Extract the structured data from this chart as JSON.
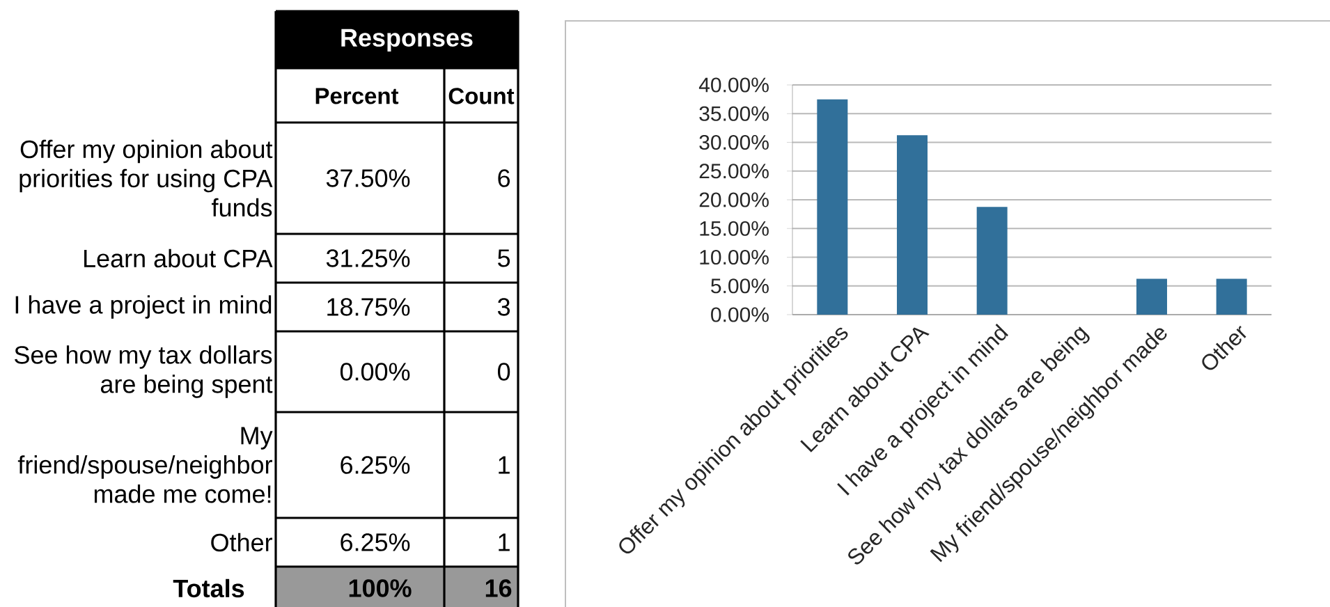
{
  "chart_data": [
    {
      "type": "other",
      "title": "Responses",
      "categories": [
        "Offer my opinion about priorities for using CPA funds",
        "Learn about CPA",
        "I have a project in mind",
        "See how my tax dollars are being spent",
        "My friend/spouse/neighbor made me come!",
        "Other"
      ],
      "series": [
        {
          "name": "Percent",
          "values": [
            37.5,
            31.25,
            18.75,
            0,
            6.25,
            6.25
          ],
          "value_labels": [
            "37.50%",
            "31.25%",
            "18.75%",
            "0.00%",
            "6.25%",
            "6.25%"
          ]
        },
        {
          "name": "Count",
          "values": [
            6,
            5,
            3,
            0,
            1,
            1
          ]
        }
      ],
      "data_labels": true,
      "annotations": [
        "Totals",
        "100%",
        "16"
      ]
    },
    {
      "type": "bar",
      "categories": [
        "Offer my opinion about priorities",
        "Learn about CPA",
        "I have a project in mind",
        "See how my tax dollars are being",
        "My friend/spouse/neighbor made",
        "Other"
      ],
      "values": [
        37.5,
        31.25,
        18.75,
        0,
        6.25,
        6.25
      ],
      "color": "#31709a",
      "ylim": [
        0,
        40
      ],
      "yticks": [
        {
          "value": 0,
          "label": "0.00%"
        },
        {
          "value": 5,
          "label": "5.00%"
        },
        {
          "value": 10,
          "label": "10.00%"
        },
        {
          "value": 15,
          "label": "15.00%"
        },
        {
          "value": 20,
          "label": "20.00%"
        },
        {
          "value": 25,
          "label": "25.00%"
        },
        {
          "value": 30,
          "label": "30.00%"
        },
        {
          "value": 35,
          "label": "35.00%"
        },
        {
          "value": 40,
          "label": "40.00%"
        }
      ],
      "grid": "y"
    }
  ]
}
